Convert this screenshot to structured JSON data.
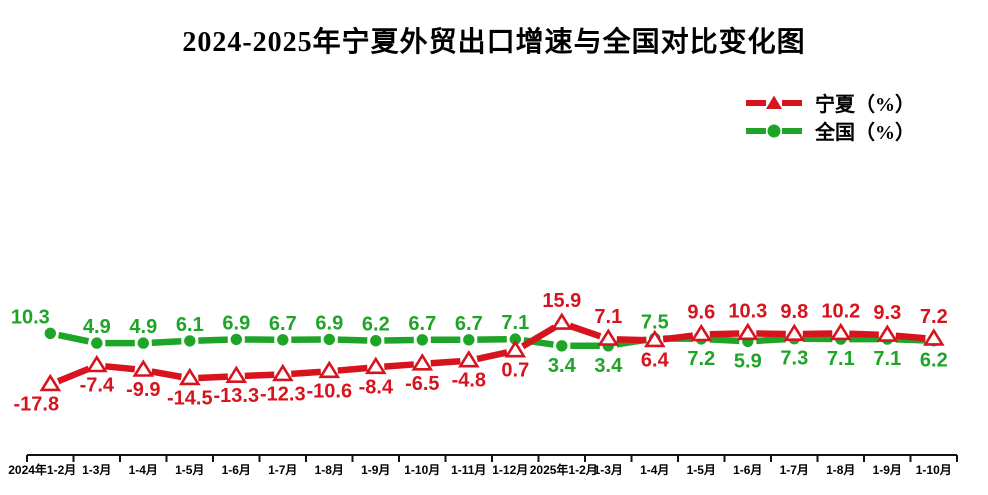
{
  "chart_data": {
    "type": "line",
    "title": "2024-2025年宁夏外贸出口增速与全国对比变化图",
    "categories": [
      "2024年1-2月",
      "1-3月",
      "1-4月",
      "1-5月",
      "1-6月",
      "1-7月",
      "1-8月",
      "1-9月",
      "1-10月",
      "1-11月",
      "1-12月",
      "2025年1-2月",
      "1-3月",
      "1-4月",
      "1-5月",
      "1-6月",
      "1-7月",
      "1-8月",
      "1-9月",
      "1-10月"
    ],
    "series": [
      {
        "id": "ningxia",
        "name": "宁夏（%）",
        "color": "#d7141e",
        "marker": "triangle",
        "values": [
          -17.8,
          -7.4,
          -9.9,
          -14.5,
          -13.3,
          -12.3,
          -10.6,
          -8.4,
          -6.5,
          -4.8,
          0.7,
          15.9,
          7.1,
          6.4,
          9.6,
          10.3,
          9.8,
          10.2,
          9.3,
          7.2
        ]
      },
      {
        "id": "national",
        "name": "全国（%）",
        "color": "#1ea528",
        "marker": "circle",
        "values": [
          10.3,
          4.9,
          4.9,
          6.1,
          6.9,
          6.7,
          6.9,
          6.2,
          6.7,
          6.7,
          7.1,
          3.4,
          3.4,
          7.5,
          7.2,
          5.9,
          7.3,
          7.1,
          7.1,
          6.2
        ]
      }
    ],
    "data_labels": true,
    "grid": false,
    "legend_position": "top-right",
    "y_axis_visible": false,
    "axis_color": "#111111",
    "axis_label_color": "#000000"
  }
}
